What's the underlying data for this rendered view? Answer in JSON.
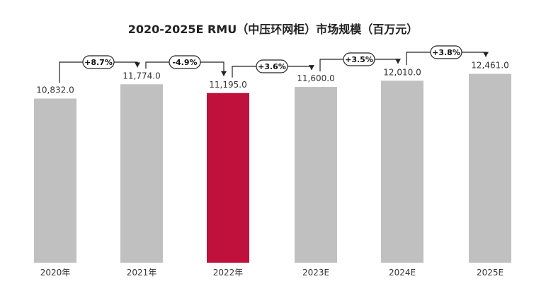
{
  "chart_data": {
    "type": "bar",
    "title": "2020-2025E RMU（中压环网柜）市场规模（百万元）",
    "categories": [
      "2020年",
      "2021年",
      "2022年",
      "2023E",
      "2024E",
      "2025E"
    ],
    "values": [
      10832.0,
      11774.0,
      11195.0,
      11600.0,
      12010.0,
      12461.0
    ],
    "value_labels": [
      "10,832.0",
      "11,774.0",
      "11,195.0",
      "11,600.0",
      "12,010.0",
      "12,461.0"
    ],
    "growth_labels": [
      "+8.7%",
      "-4.9%",
      "+3.6%",
      "+3.5%",
      "+3.8%"
    ],
    "highlight_index": 2,
    "colors": {
      "bar": "#c0c0c0",
      "highlight": "#c0103c",
      "text": "#333333",
      "arrow": "#222222"
    },
    "legend": "none",
    "grid": false
  }
}
